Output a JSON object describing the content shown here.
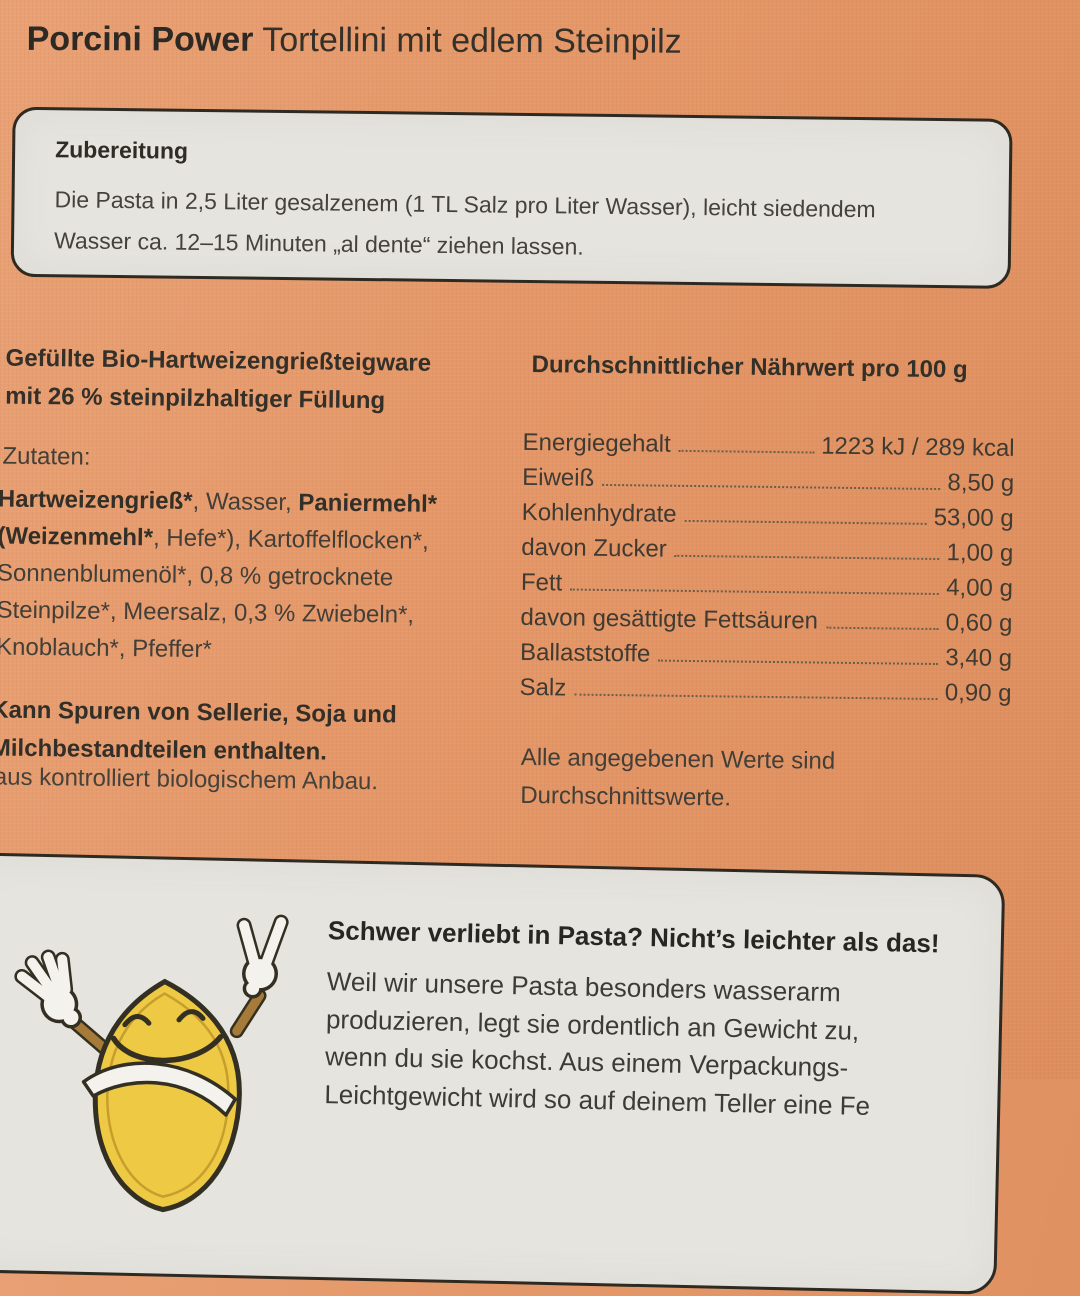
{
  "title": {
    "brand": "Porcini Power",
    "product": "Tortellini mit edlem Steinpilz"
  },
  "preparation": {
    "heading": "Zubereitung",
    "lines": [
      "Die Pasta in 2,5 Liter gesalzenem (1 TL Salz pro Liter Wasser), leicht siedendem",
      "Wasser ca. 12–15 Minuten „al dente“ ziehen lassen."
    ]
  },
  "product": {
    "description_lines": [
      "Gefüllte Bio-Hartweizengrießteigware",
      "mit 26 % steinpilzhaltiger Füllung"
    ],
    "ingredients_label": "Zutaten:",
    "ingredients_lines": [
      [
        {
          "t": "Hartweizengrieß*",
          "b": true
        },
        {
          "t": ", Wasser, ",
          "b": false
        },
        {
          "t": "Paniermehl*",
          "b": true
        }
      ],
      [
        {
          "t": "(Weizenmehl*",
          "b": true
        },
        {
          "t": ", Hefe*), Kartoffelflocken*,",
          "b": false
        }
      ],
      [
        {
          "t": "Sonnenblumenöl*, 0,8 % getrocknete",
          "b": false
        }
      ],
      [
        {
          "t": "Steinpilze*, Meersalz, 0,3 % Zwiebeln*,",
          "b": false
        }
      ],
      [
        {
          "t": "Knoblauch*, Pfeffer*",
          "b": false
        }
      ]
    ],
    "allergen_lines": [
      "Kann Spuren von Sellerie, Soja und",
      "Milchbestandteilen enthalten."
    ],
    "organic_note": "*aus kontrolliert biologischem Anbau."
  },
  "nutrition": {
    "heading": "Durchschnittlicher Nährwert pro 100 g",
    "rows": [
      {
        "label": "Energiegehalt",
        "value": "1223 kJ / 289 kcal"
      },
      {
        "label": "Eiweiß",
        "value": "8,50 g"
      },
      {
        "label": "Kohlenhydrate",
        "value": "53,00 g"
      },
      {
        "label": "davon Zucker",
        "value": "1,00 g"
      },
      {
        "label": "Fett",
        "value": "4,00 g"
      },
      {
        "label": "davon gesättigte Fettsäuren",
        "value": "0,60 g"
      },
      {
        "label": "Ballaststoffe",
        "value": "3,40 g"
      },
      {
        "label": "Salz",
        "value": "0,90 g"
      }
    ],
    "footnote_lines": [
      "Alle angegebenen Werte sind",
      "Durchschnittswerte."
    ]
  },
  "pasta_info": {
    "heading": "Schwer verliebt in Pasta? Nicht’s leichter als das!",
    "body_lines": [
      "Weil wir unsere Pasta besonders wasserarm",
      "produzieren, legt sie ordentlich an Gewicht zu,",
      "wenn du sie kochst. Aus einem Verpackungs-",
      "Leichtgewicht wird so auf deinem Teller eine Fe"
    ],
    "mascot": "tortellini-mascot-peace-sign"
  },
  "colors": {
    "background_orange": "#e49768",
    "panel_gray": "#e6e4df",
    "panel_border": "#2e2a22",
    "text_dark": "#332f29",
    "mascot_yellow": "#eec943",
    "mascot_arm_brown": "#a67a39",
    "mascot_glove_white": "#f4f2ec"
  }
}
